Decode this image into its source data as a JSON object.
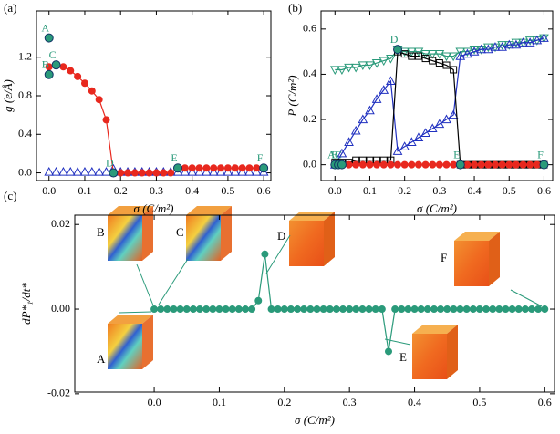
{
  "chart_data": [
    {
      "type": "scatter",
      "panel": "(a)",
      "xlabel": "σ (C/m²)",
      "ylabel": "g (e/Å)",
      "xlim": [
        -0.035,
        0.62
      ],
      "ylim": [
        -0.08,
        1.68
      ],
      "xticks": [
        {
          "value": 0,
          "label": "0.0"
        },
        {
          "value": 0.1,
          "label": "0.1"
        },
        {
          "value": 0.2,
          "label": "0.2"
        },
        {
          "value": 0.3,
          "label": "0.3"
        },
        {
          "value": 0.4,
          "label": "0.4"
        },
        {
          "value": 0.5,
          "label": "0.5"
        },
        {
          "value": 0.6,
          "label": "0.6"
        }
      ],
      "yticks": [
        {
          "value": 0,
          "label": "0.0"
        },
        {
          "value": 0.4,
          "label": "0.4"
        },
        {
          "value": 0.8,
          "label": "0.8"
        },
        {
          "value": 1.2,
          "label": "1.2"
        }
      ],
      "x": [
        0,
        0.02,
        0.04,
        0.06,
        0.08,
        0.1,
        0.12,
        0.14,
        0.16,
        0.18,
        0.2,
        0.22,
        0.24,
        0.26,
        0.28,
        0.3,
        0.32,
        0.34,
        0.36,
        0.38,
        0.4,
        0.42,
        0.44,
        0.46,
        0.48,
        0.5,
        0.52,
        0.54,
        0.56,
        0.58,
        0.6
      ],
      "series": [
        {
          "color": "#2030c0",
          "marker": "triangle-up",
          "line": false,
          "values": [
            0.01,
            0.01,
            0.01,
            0.01,
            0.01,
            0.01,
            0.01,
            0.01,
            0.01,
            0.04,
            0.01,
            0.01,
            0.01,
            0.01,
            0.01,
            0.01,
            0.01,
            0.01,
            0.01,
            0.01,
            0.01,
            0.01,
            0.01,
            0.01,
            0.01,
            0.01,
            0.01,
            0.01,
            0.01,
            0.01,
            0.01
          ]
        },
        {
          "color": "#e8281e",
          "marker": "circle",
          "line": true,
          "values": [
            1.1,
            1.12,
            1.1,
            1.06,
            1.0,
            0.93,
            0.85,
            0.76,
            0.55,
            0,
            0,
            0,
            0,
            0,
            0,
            0,
            0,
            0,
            0.05,
            0.05,
            0.05,
            0.05,
            0.05,
            0.05,
            0.05,
            0.05,
            0.05,
            0.05,
            0.05,
            0.05,
            0.05
          ]
        },
        {
          "color": "#2a9a7a",
          "marker": "big-circle",
          "line": false,
          "x": [
            0,
            0,
            0.02,
            0.18,
            0.36,
            0.6
          ],
          "values": [
            1.4,
            1.02,
            1.12,
            0,
            0.05,
            0.05
          ],
          "labels": [
            "A",
            "B",
            "C",
            "D",
            "E",
            "F"
          ]
        }
      ]
    },
    {
      "type": "scatter",
      "panel": "(b)",
      "xlabel": "σ (C/m²)",
      "ylabel": "P (C/m²)",
      "xlim": [
        -0.04,
        0.625
      ],
      "ylim": [
        -0.07,
        0.68
      ],
      "xticks": [
        {
          "value": 0,
          "label": "0.0"
        },
        {
          "value": 0.1,
          "label": "0.1"
        },
        {
          "value": 0.2,
          "label": "0.2"
        },
        {
          "value": 0.3,
          "label": "0.3"
        },
        {
          "value": 0.4,
          "label": "0.4"
        },
        {
          "value": 0.5,
          "label": "0.5"
        },
        {
          "value": 0.6,
          "label": "0.6"
        }
      ],
      "yticks": [
        {
          "value": 0,
          "label": "0.0"
        },
        {
          "value": 0.2,
          "label": "0.2"
        },
        {
          "value": 0.4,
          "label": "0.4"
        },
        {
          "value": 0.6,
          "label": "0.6"
        }
      ],
      "x": [
        0,
        0.02,
        0.04,
        0.06,
        0.08,
        0.1,
        0.12,
        0.14,
        0.16,
        0.18,
        0.2,
        0.22,
        0.24,
        0.26,
        0.28,
        0.3,
        0.32,
        0.34,
        0.36,
        0.38,
        0.4,
        0.42,
        0.44,
        0.46,
        0.48,
        0.5,
        0.52,
        0.54,
        0.56,
        0.58,
        0.6
      ],
      "series": [
        {
          "color": "#2a9a7a",
          "marker": "triangle-down",
          "line": true,
          "values": [
            0.42,
            0.42,
            0.43,
            0.43,
            0.44,
            0.44,
            0.45,
            0.46,
            0.47,
            0.51,
            0.5,
            0.5,
            0.5,
            0.49,
            0.49,
            0.49,
            0.48,
            0.48,
            0.5,
            0.5,
            0.51,
            0.51,
            0.52,
            0.52,
            0.53,
            0.53,
            0.54,
            0.54,
            0.55,
            0.55,
            0.56
          ]
        },
        {
          "color": "#2030c0",
          "marker": "triangle-up",
          "line": true,
          "values": [
            0,
            0.05,
            0.1,
            0.15,
            0.2,
            0.24,
            0.29,
            0.33,
            0.37,
            0.06,
            0.08,
            0.1,
            0.12,
            0.14,
            0.16,
            0.18,
            0.2,
            0.22,
            0.48,
            0.49,
            0.5,
            0.51,
            0.51,
            0.52,
            0.52,
            0.53,
            0.53,
            0.54,
            0.54,
            0.55,
            0.56
          ]
        },
        {
          "color": "#000000",
          "marker": "square",
          "line": true,
          "values": [
            0.01,
            0.01,
            0.01,
            0.02,
            0.02,
            0.02,
            0.02,
            0.02,
            0.02,
            0.5,
            0.49,
            0.48,
            0.48,
            0.47,
            0.46,
            0.45,
            0.44,
            0.42,
            0,
            0,
            0,
            0,
            0,
            0,
            0,
            0,
            0,
            0,
            0,
            0,
            0
          ]
        },
        {
          "color": "#e8281e",
          "marker": "circle",
          "line": true,
          "values": [
            0,
            0,
            0,
            0,
            0,
            0,
            0,
            0,
            0,
            0,
            0,
            0,
            0,
            0,
            0,
            0,
            0,
            0,
            0,
            0,
            0,
            0,
            0,
            0,
            0,
            0,
            0,
            0,
            0,
            0,
            0
          ]
        },
        {
          "color": "#2a9a7a",
          "marker": "big-circle",
          "line": false,
          "x": [
            0,
            0.01,
            0.02,
            0.18,
            0.36,
            0.6
          ],
          "values": [
            0,
            0,
            0,
            0.51,
            0,
            0
          ],
          "labels": [
            "A",
            "B",
            "C",
            "D",
            "E",
            "F"
          ]
        }
      ]
    },
    {
      "type": "line",
      "panel": "(c)",
      "xlabel": "σ (C/m²)",
      "ylabel": "dP*₁/dt*",
      "xlim": [
        -0.122,
        0.615
      ],
      "ylim": [
        -0.0196,
        0.0222
      ],
      "xticks": [
        {
          "value": 0,
          "label": "0.0"
        },
        {
          "value": 0.1,
          "label": "0.1"
        },
        {
          "value": 0.2,
          "label": "0.2"
        },
        {
          "value": 0.3,
          "label": "0.3"
        },
        {
          "value": 0.4,
          "label": "0.4"
        },
        {
          "value": 0.5,
          "label": "0.5"
        },
        {
          "value": 0.6,
          "label": "0.6"
        }
      ],
      "yticks": [
        {
          "value": -0.02,
          "label": "-0.02"
        },
        {
          "value": 0,
          "label": "0.00"
        },
        {
          "value": 0.02,
          "label": "0.02"
        }
      ],
      "insets": [
        "A",
        "B",
        "C",
        "D",
        "E",
        "F"
      ],
      "x": [
        0,
        0.01,
        0.02,
        0.03,
        0.04,
        0.05,
        0.06,
        0.07,
        0.08,
        0.09,
        0.1,
        0.11,
        0.12,
        0.13,
        0.14,
        0.15,
        0.16,
        0.17,
        0.18,
        0.19,
        0.2,
        0.21,
        0.22,
        0.23,
        0.24,
        0.25,
        0.26,
        0.27,
        0.28,
        0.29,
        0.3,
        0.31,
        0.32,
        0.33,
        0.34,
        0.35,
        0.36,
        0.37,
        0.38,
        0.39,
        0.4,
        0.41,
        0.42,
        0.43,
        0.44,
        0.45,
        0.46,
        0.47,
        0.48,
        0.49,
        0.5,
        0.51,
        0.52,
        0.53,
        0.54,
        0.55,
        0.56,
        0.57,
        0.58,
        0.59,
        0.6
      ],
      "series": [
        {
          "color": "#2a9a7a",
          "marker": "circle",
          "line": true,
          "values": [
            0,
            0,
            0,
            0,
            0,
            0,
            0,
            0,
            0,
            0,
            0,
            0,
            0,
            0,
            0,
            0,
            0.002,
            0.013,
            0,
            0,
            0,
            0,
            0,
            0,
            0,
            0,
            0,
            0,
            0,
            0,
            0,
            0,
            0,
            0,
            0,
            0,
            -0.01,
            0,
            0,
            0,
            0,
            0,
            0,
            0,
            0,
            0,
            0,
            0,
            0,
            0,
            0,
            0,
            0,
            0,
            0,
            0,
            0,
            0,
            0,
            0,
            0
          ]
        }
      ]
    }
  ]
}
